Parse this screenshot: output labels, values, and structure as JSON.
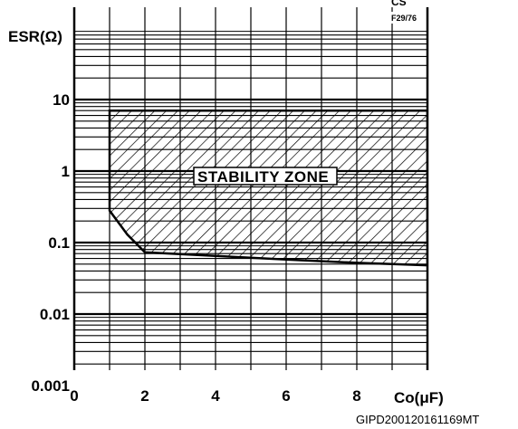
{
  "chart_data": {
    "type": "area",
    "xlabel": "Co(μF)",
    "ylabel": "ESR(Ω)",
    "xlim": [
      0,
      10
    ],
    "ylim": [
      0.001,
      100
    ],
    "y_scale": "log",
    "grid": true,
    "x_ticks": [
      "0",
      "2",
      "4",
      "6",
      "8"
    ],
    "y_ticks": [
      "10",
      "1",
      "0.1",
      "0.01",
      "0.001"
    ],
    "series": [
      {
        "name": "STABILITY ZONE",
        "upper": {
          "x": [
            1,
            10
          ],
          "y": [
            7,
            7
          ]
        },
        "lower": {
          "x": [
            1,
            1.5,
            2,
            4,
            6,
            8,
            10
          ],
          "y": [
            0.28,
            0.13,
            0.073,
            0.065,
            0.058,
            0.052,
            0.048
          ]
        }
      }
    ],
    "annotations": {
      "zone_label": "STABILITY ZONE",
      "corner_label": "CS",
      "corner_code": "F29/76"
    }
  },
  "footer_code": "GIPD200120161169MT"
}
